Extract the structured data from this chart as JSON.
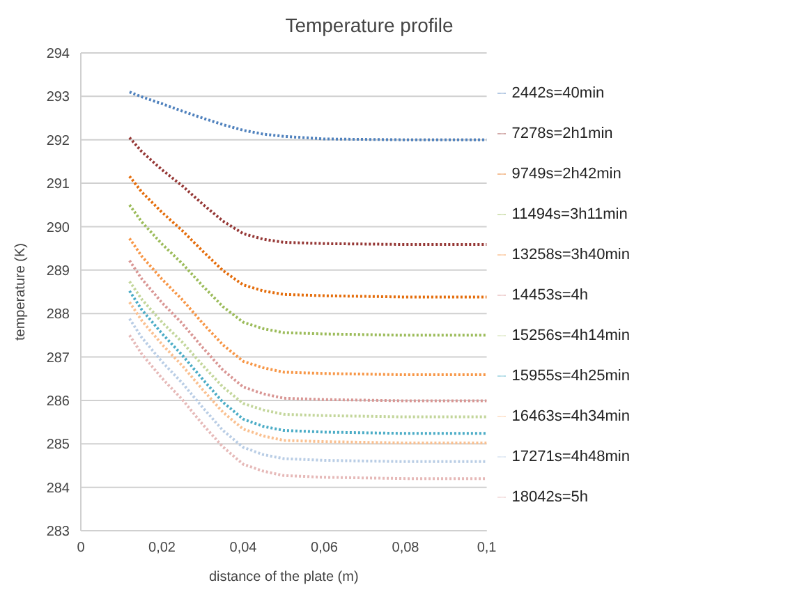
{
  "chart_data": {
    "type": "line",
    "title": "Temperature profile",
    "xlabel": "distance of the plate (m)",
    "ylabel": "temperature (K)",
    "x": [
      0.012,
      0.015,
      0.02,
      0.025,
      0.03,
      0.035,
      0.04,
      0.045,
      0.05,
      0.06,
      0.08,
      0.1
    ],
    "xlim": [
      0,
      0.1
    ],
    "xticks": [
      0,
      {
        "value": 0.02,
        "label": "0,02"
      },
      {
        "value": 0.04,
        "label": "0,04"
      },
      {
        "value": 0.06,
        "label": "0,06"
      },
      {
        "value": 0.08,
        "label": "0,08"
      },
      {
        "value": 0.1,
        "label": "0,1"
      }
    ],
    "ylim": [
      283,
      294
    ],
    "yticks": [
      283,
      284,
      285,
      286,
      287,
      288,
      289,
      290,
      291,
      292,
      293,
      294
    ],
    "grid": "y",
    "legend": "right",
    "marker": "none",
    "line_style": "dotted",
    "series": [
      {
        "name": "2442s=40min",
        "color": "#4f81bd",
        "values": [
          293.1,
          292.99,
          292.83,
          292.66,
          292.5,
          292.35,
          292.22,
          292.13,
          292.08,
          292.02,
          292.0,
          292.0
        ]
      },
      {
        "name": "7278s=2h1min",
        "color": "#953735",
        "values": [
          292.05,
          291.73,
          291.31,
          290.94,
          290.52,
          290.13,
          289.84,
          289.71,
          289.64,
          289.61,
          289.59,
          289.59
        ]
      },
      {
        "name": "9749s=2h42min",
        "color": "#e46c0a",
        "values": [
          291.16,
          290.8,
          290.33,
          289.91,
          289.44,
          288.99,
          288.66,
          288.52,
          288.44,
          288.41,
          288.38,
          288.38
        ]
      },
      {
        "name": "11494s=3h11min",
        "color": "#9bbb59",
        "values": [
          290.5,
          290.11,
          289.6,
          289.15,
          288.64,
          288.16,
          287.8,
          287.65,
          287.56,
          287.53,
          287.5,
          287.5
        ]
      },
      {
        "name": "13258s=3h40min",
        "color": "#f79646",
        "values": [
          289.73,
          289.32,
          288.79,
          288.32,
          287.78,
          287.28,
          286.9,
          286.75,
          286.65,
          286.62,
          286.59,
          286.59
        ]
      },
      {
        "name": "14453s=4h",
        "color": "#d99694",
        "values": [
          289.22,
          288.8,
          288.25,
          287.77,
          287.22,
          286.7,
          286.31,
          286.15,
          286.05,
          286.02,
          285.99,
          285.99
        ]
      },
      {
        "name": "15256s=4h14min",
        "color": "#c3d69b",
        "values": [
          288.74,
          288.33,
          287.8,
          287.34,
          286.81,
          286.31,
          285.93,
          285.78,
          285.68,
          285.65,
          285.62,
          285.62
        ]
      },
      {
        "name": "15955s=4h25min",
        "color": "#4bacc6",
        "values": [
          288.52,
          288.09,
          287.54,
          287.04,
          286.49,
          285.96,
          285.57,
          285.4,
          285.31,
          285.27,
          285.24,
          285.24
        ]
      },
      {
        "name": "16463s=4h34min",
        "color": "#fac090",
        "values": [
          288.26,
          287.84,
          287.29,
          286.8,
          286.25,
          285.73,
          285.34,
          285.18,
          285.08,
          285.05,
          285.02,
          285.02
        ]
      },
      {
        "name": "17271s=4h48min",
        "color": "#b9cde5",
        "values": [
          287.88,
          287.45,
          286.89,
          286.4,
          285.84,
          285.31,
          284.92,
          284.75,
          284.66,
          284.62,
          284.59,
          284.59
        ]
      },
      {
        "name": "18042s=5h",
        "color": "#e6b9b8",
        "values": [
          287.5,
          287.07,
          286.51,
          286.02,
          285.45,
          284.93,
          284.53,
          284.37,
          284.27,
          284.23,
          284.2,
          284.2
        ]
      }
    ]
  }
}
